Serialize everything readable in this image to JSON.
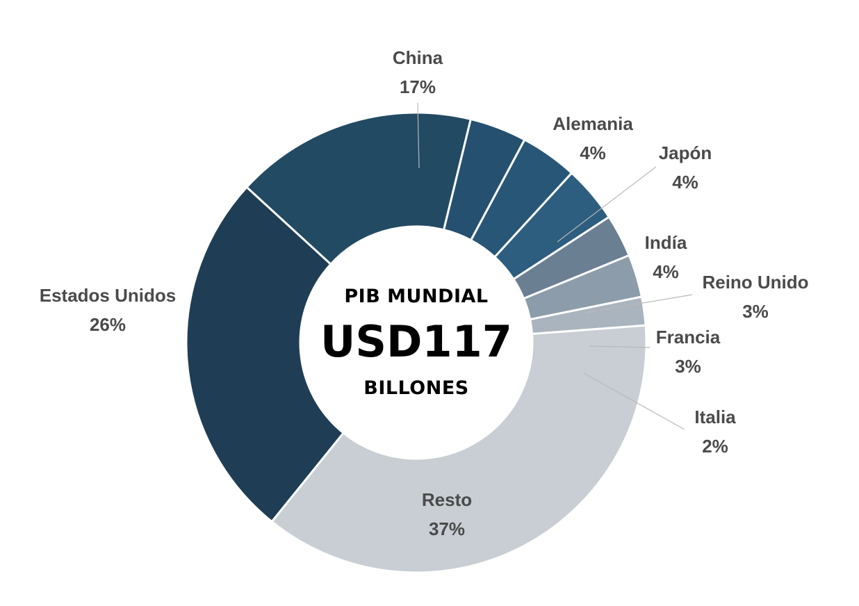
{
  "center_text": {
    "line1": "PIB MUNDIAL",
    "line2": "USD117",
    "line3": "BILLONES"
  },
  "chart_data": {
    "type": "pie",
    "subtype": "donut",
    "unit": "%",
    "categories": [
      "China",
      "Alemania",
      "Japón",
      "Indía",
      "Reino Unido",
      "Francia",
      "Italia",
      "Resto",
      "Estados Unidos"
    ],
    "values": [
      17,
      4,
      4,
      4,
      3,
      3,
      2,
      37,
      26
    ],
    "labels": [
      "17%",
      "4%",
      "4%",
      "4%",
      "3%",
      "3%",
      "2%",
      "37%",
      "26%"
    ],
    "colors": [
      "#234a63",
      "#265070",
      "#285677",
      "#2d5d7f",
      "#6b7f93",
      "#8c9caa",
      "#aab4be",
      "#c8ced4",
      "#1f3e55"
    ],
    "legend": "none"
  }
}
